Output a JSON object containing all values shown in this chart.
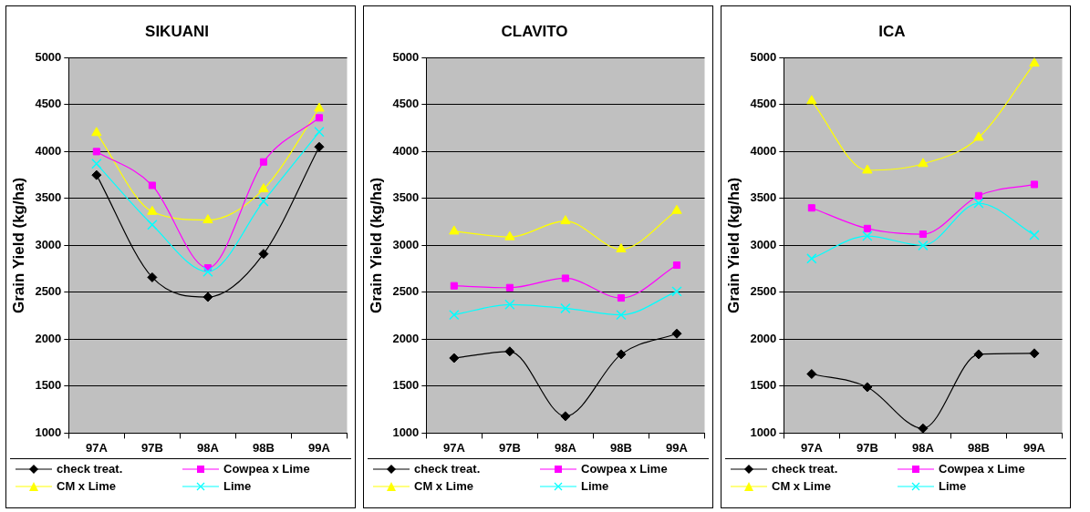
{
  "chart_data": [
    {
      "type": "line",
      "title": "SIKUANI",
      "ylabel": "Grain Yield (kg/ha)",
      "categories": [
        "97A",
        "97B",
        "98A",
        "98B",
        "99A"
      ],
      "ylim": [
        1000,
        5000
      ],
      "yticks": [
        1000,
        1500,
        2000,
        2500,
        3000,
        3500,
        4000,
        4500,
        5000
      ],
      "grid": "y",
      "legend": "bottom",
      "line_style": "solid",
      "series": [
        {
          "name": "check treat.",
          "color": "#000000",
          "marker": "diamond",
          "values": [
            3750,
            2660,
            2450,
            2910,
            4050
          ]
        },
        {
          "name": "Cowpea x Lime",
          "color": "#ff00ff",
          "marker": "square",
          "values": [
            4000,
            3640,
            2760,
            3890,
            4360
          ]
        },
        {
          "name": "CM x Lime",
          "color": "#ffff00",
          "marker": "triangle",
          "values": [
            4200,
            3360,
            3270,
            3600,
            4460
          ]
        },
        {
          "name": "Lime",
          "color": "#00ffff",
          "marker": "cross",
          "values": [
            3870,
            3220,
            2720,
            3470,
            4210
          ]
        }
      ]
    },
    {
      "type": "line",
      "title": "CLAVITO",
      "ylabel": "Grain Yield (kg/ha)",
      "categories": [
        "97A",
        "97B",
        "98A",
        "98B",
        "99A"
      ],
      "ylim": [
        1000,
        5000
      ],
      "yticks": [
        1000,
        1500,
        2000,
        2500,
        3000,
        3500,
        4000,
        4500,
        5000
      ],
      "grid": "y",
      "legend": "bottom",
      "line_style": "solid",
      "series": [
        {
          "name": "check treat.",
          "color": "#000000",
          "marker": "diamond",
          "values": [
            1800,
            1870,
            1180,
            1840,
            2060
          ]
        },
        {
          "name": "Cowpea x Lime",
          "color": "#ff00ff",
          "marker": "square",
          "values": [
            2570,
            2550,
            2650,
            2440,
            2790
          ]
        },
        {
          "name": "CM x Lime",
          "color": "#ffff00",
          "marker": "triangle",
          "values": [
            3150,
            3090,
            3260,
            2960,
            3370
          ]
        },
        {
          "name": "Lime",
          "color": "#00ffff",
          "marker": "cross",
          "values": [
            2260,
            2370,
            2330,
            2260,
            2510
          ]
        }
      ]
    },
    {
      "type": "line",
      "title": "ICA",
      "ylabel": "Grain Yield (kg/ha)",
      "categories": [
        "97A",
        "97B",
        "98A",
        "98B",
        "99A"
      ],
      "ylim": [
        1000,
        5000
      ],
      "yticks": [
        1000,
        1500,
        2000,
        2500,
        3000,
        3500,
        4000,
        4500,
        5000
      ],
      "grid": "y",
      "legend": "bottom",
      "line_style": "solid",
      "series": [
        {
          "name": "check treat.",
          "color": "#000000",
          "marker": "diamond",
          "values": [
            1630,
            1490,
            1050,
            1840,
            1850
          ]
        },
        {
          "name": "Cowpea x Lime",
          "color": "#ff00ff",
          "marker": "square",
          "values": [
            3400,
            3180,
            3120,
            3530,
            3650
          ]
        },
        {
          "name": "CM x Lime",
          "color": "#ffff00",
          "marker": "triangle",
          "values": [
            4540,
            3800,
            3870,
            4150,
            4940
          ]
        },
        {
          "name": "Lime",
          "color": "#00ffff",
          "marker": "cross",
          "values": [
            2860,
            3100,
            3000,
            3450,
            3110
          ]
        }
      ]
    }
  ]
}
